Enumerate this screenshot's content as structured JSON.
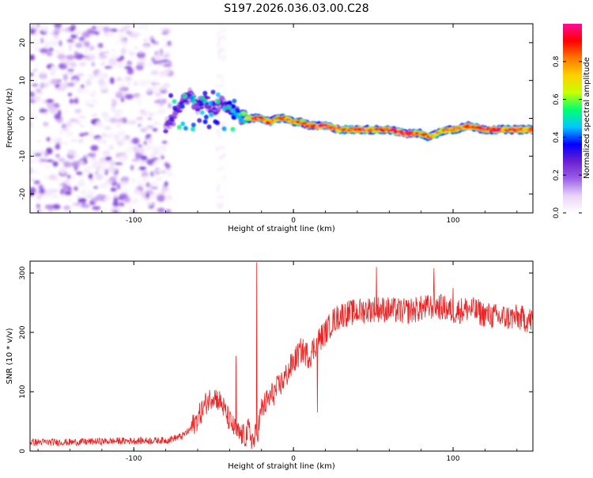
{
  "title": "S197.2026.036.03.00.C28",
  "chart_data": [
    {
      "type": "heatmap",
      "name": "spectrogram",
      "xlabel": "Height of straight line (km)",
      "ylabel": "Frequency (Hz)",
      "xlim": [
        -165,
        150
      ],
      "ylim": [
        -25,
        25
      ],
      "xticks": [
        -100,
        0,
        100
      ],
      "yticks": [
        -20,
        -10,
        0,
        10,
        20
      ],
      "colorbar": {
        "label": "Normalized spectral amplitude",
        "range": [
          0,
          1
        ],
        "ticks": [
          0.0,
          0.2,
          0.4,
          0.6,
          0.8
        ],
        "tick_labels": [
          "0.0",
          "0.2",
          "0.4",
          "0.6",
          "0.8"
        ],
        "colors": [
          "#ffffff",
          "#e9d3f7",
          "#9a5fe6",
          "#6a1fd0",
          "#0000ff",
          "#00c8ff",
          "#00ff70",
          "#c8ff00",
          "#ffd000",
          "#ff7800",
          "#ff0000",
          "#ff0a9a"
        ]
      },
      "signal_trace": {
        "x": [
          -80,
          -75,
          -70,
          -65,
          -60,
          -55,
          -50,
          -45,
          -40,
          -35,
          -30,
          -25,
          -20,
          -15,
          -10,
          -5,
          0,
          5,
          10,
          15,
          20,
          30,
          40,
          50,
          60,
          70,
          80,
          85,
          90,
          95,
          100,
          110,
          120,
          130,
          140,
          150
        ],
        "y": [
          -2,
          0,
          4,
          6,
          3,
          5,
          2,
          4,
          3,
          1,
          0,
          0,
          0,
          -1,
          0,
          0,
          -1,
          -1,
          -2,
          -2,
          -2,
          -3,
          -3,
          -3,
          -3,
          -4,
          -4,
          -5,
          -4,
          -3,
          -3,
          -2,
          -3,
          -3,
          -3,
          -3
        ],
        "amplitude": [
          0.3,
          0.25,
          0.35,
          0.3,
          0.3,
          0.35,
          0.3,
          0.3,
          0.4,
          0.5,
          0.7,
          0.95,
          0.95,
          0.9,
          0.85,
          0.9,
          0.8,
          0.9,
          0.95,
          0.95,
          1.0,
          0.95,
          1.0,
          0.9,
          0.95,
          1.0,
          0.95,
          0.9,
          0.85,
          0.9,
          0.9,
          0.95,
          1.0,
          0.95,
          0.95,
          0.9
        ]
      },
      "noise_region": {
        "x_range": [
          -165,
          -77
        ],
        "amplitude": 0.25
      }
    },
    {
      "type": "line",
      "name": "snr",
      "xlabel": "Height of straight line (km)",
      "ylabel": "SNR (10 * v/v)",
      "xlim": [
        -165,
        150
      ],
      "ylim": [
        0,
        320
      ],
      "xticks": [
        -100,
        0,
        100
      ],
      "yticks": [
        0,
        100,
        200,
        300
      ],
      "color": "#ee2222",
      "x": [
        -165,
        -140,
        -110,
        -80,
        -70,
        -65,
        -60,
        -55,
        -50,
        -45,
        -40,
        -35,
        -30,
        -28,
        -25,
        -22,
        -20,
        -15,
        -10,
        -5,
        0,
        5,
        10,
        15,
        20,
        25,
        30,
        40,
        50,
        60,
        70,
        80,
        90,
        100,
        110,
        120,
        130,
        140,
        150
      ],
      "y": [
        15,
        15,
        17,
        18,
        25,
        35,
        55,
        80,
        95,
        80,
        50,
        30,
        25,
        35,
        15,
        40,
        70,
        90,
        105,
        125,
        150,
        170,
        160,
        185,
        200,
        220,
        230,
        235,
        240,
        238,
        235,
        240,
        245,
        235,
        240,
        230,
        225,
        225,
        220
      ],
      "spikes": [
        {
          "x": -23,
          "y": 318
        },
        {
          "x": -36,
          "y": 160
        },
        {
          "x": 15,
          "y": 65
        },
        {
          "x": 52,
          "y": 310
        },
        {
          "x": 88,
          "y": 308
        },
        {
          "x": 100,
          "y": 275
        }
      ],
      "noise_amplitude": [
        {
          "x_range": [
            -165,
            -65
          ],
          "amp": 12
        },
        {
          "x_range": [
            -65,
            -30
          ],
          "amp": 40
        },
        {
          "x_range": [
            -30,
            20
          ],
          "amp": 45
        },
        {
          "x_range": [
            20,
            150
          ],
          "amp": 45
        }
      ]
    }
  ]
}
